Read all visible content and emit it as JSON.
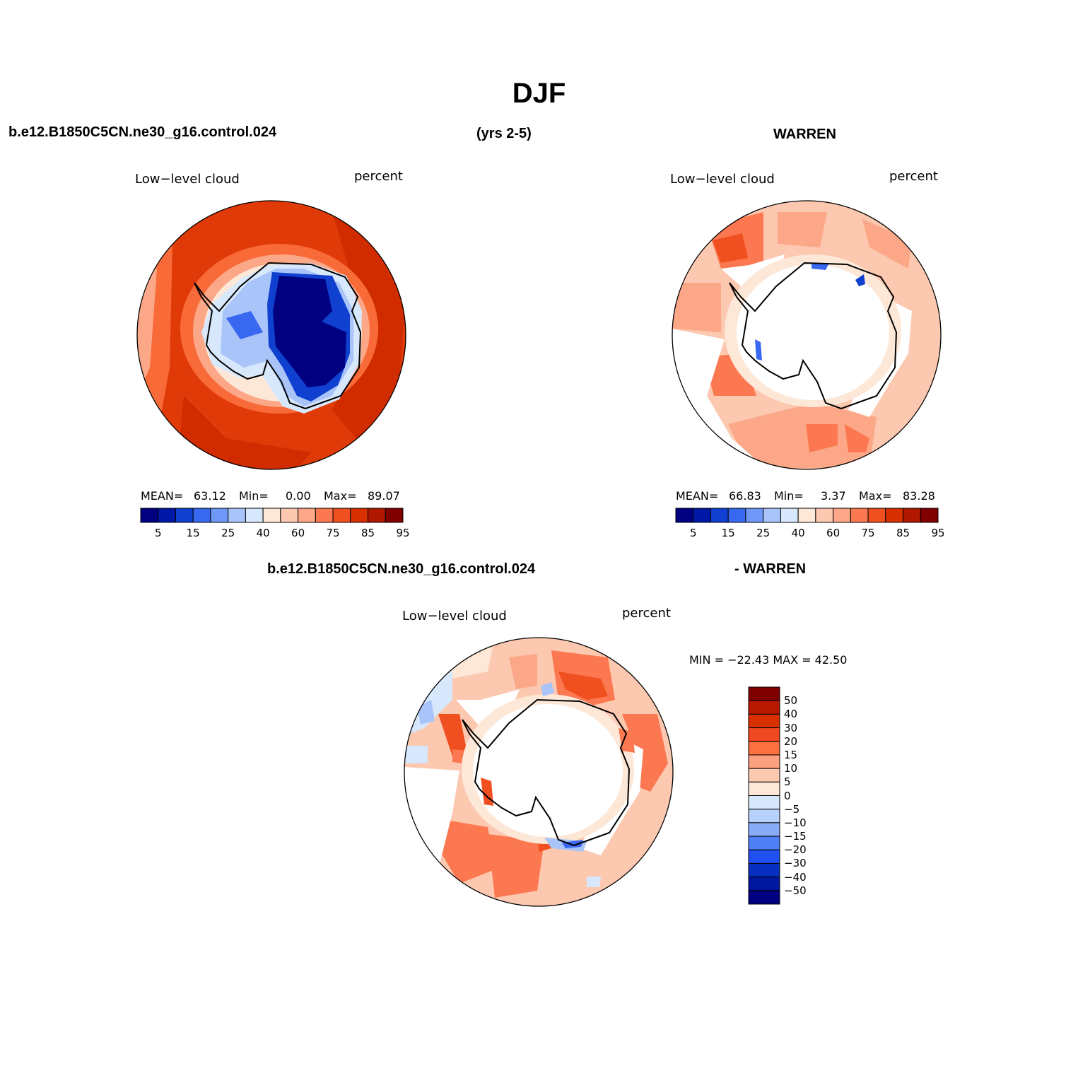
{
  "title": "DJF",
  "header": {
    "case_name": "b.e12.B1850C5CN.ne30_g16.control.024",
    "years": "(yrs 2-5)",
    "obs_name": "WARREN",
    "diff_case_name": "b.e12.B1850C5CN.ne30_g16.control.024",
    "diff_obs_name": "- WARREN"
  },
  "panels": {
    "model": {
      "variable": "Low−level cloud",
      "units": "percent",
      "mean_label": "MEAN=",
      "mean": "63.12",
      "min_label": "Min=",
      "min": "0.00",
      "max_label": "Max=",
      "max": "89.07"
    },
    "obs": {
      "variable": "Low−level cloud",
      "units": "percent",
      "mean_label": "MEAN=",
      "mean": "66.83",
      "min_label": "Min=",
      "min": "3.37",
      "max_label": "Max=",
      "max": "83.28"
    },
    "diff": {
      "variable": "Low−level cloud",
      "units": "percent",
      "minmax_text": "MIN = −22.43 MAX =   42.50"
    }
  },
  "colorbar_abs": {
    "colors": [
      "#000080",
      "#0018a8",
      "#1040d0",
      "#3868f0",
      "#7098f8",
      "#a8c4f8",
      "#d8e8fc",
      "#fde8d8",
      "#fcc8b0",
      "#fca888",
      "#fc7850",
      "#f05020",
      "#d83000",
      "#b01800",
      "#800000"
    ],
    "tick_labels": [
      "5",
      "15",
      "25",
      "40",
      "60",
      "75",
      "85",
      "95"
    ]
  },
  "colorbar_diff": {
    "colors": [
      "#800000",
      "#b81800",
      "#d83000",
      "#f04820",
      "#fc7040",
      "#fca080",
      "#fcc8b0",
      "#fde8d8",
      "#d8e8fc",
      "#b8d0fc",
      "#88acf8",
      "#5080f8",
      "#2050f0",
      "#0830c0",
      "#0018a0",
      "#000080"
    ],
    "tick_labels": [
      "50",
      "40",
      "30",
      "20",
      "15",
      "10",
      "5",
      "0",
      "−5",
      "−10",
      "−15",
      "−20",
      "−30",
      "−40",
      "−50"
    ]
  }
}
